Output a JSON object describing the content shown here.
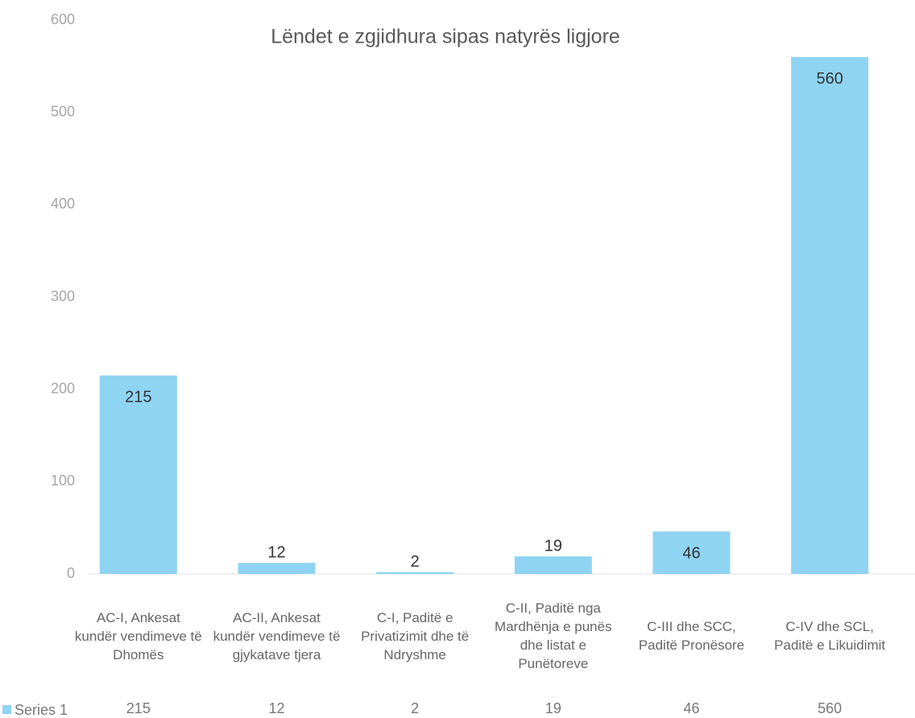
{
  "chart_data": {
    "type": "bar",
    "title": "Lëndet e zgjidhura sipas natyrës ligjore",
    "categories": [
      "AC-I, Ankesat kundër vendimeve të Dhomës",
      "AC-II, Ankesat kundër vendimeve të gjykatave tjera",
      "C-I, Paditë e Privatizimit dhe të Ndryshme",
      "C-II, Paditë nga Mardhënja e punës dhe listat e Punëtoreve",
      "C-III dhe SCC, Paditë Pronësore",
      "C-IV dhe SCL, Paditë e Likuidimit"
    ],
    "series": [
      {
        "name": "Series 1",
        "color": "#8fd4f3",
        "values": [
          215,
          12,
          2,
          19,
          46,
          560
        ]
      }
    ],
    "ylim": [
      0,
      600
    ],
    "yticks": [
      0,
      100,
      200,
      300,
      400,
      500,
      600
    ]
  }
}
